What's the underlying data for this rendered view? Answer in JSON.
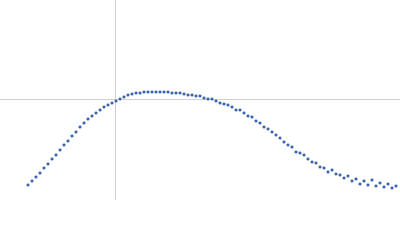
{
  "chart_data": {
    "type": "scatter",
    "color": "#3a64b0",
    "xlim": [
      0,
      400
    ],
    "ylim": [
      0,
      200
    ],
    "x": [
      28,
      32,
      36,
      40,
      44,
      48,
      52,
      56,
      60,
      64,
      68,
      72,
      76,
      80,
      84,
      88,
      92,
      96,
      100,
      104,
      108,
      112,
      116,
      120,
      124,
      128,
      132,
      136,
      140,
      144,
      148,
      152,
      156,
      160,
      164,
      168,
      172,
      176,
      180,
      184,
      188,
      192,
      196,
      200,
      204,
      208,
      212,
      216,
      220,
      224,
      228,
      232,
      236,
      240,
      244,
      248,
      252,
      256,
      260,
      264,
      268,
      272,
      276,
      280,
      284,
      288,
      292,
      296,
      300,
      304,
      308,
      312,
      316,
      320,
      324,
      328,
      332,
      336,
      340,
      344,
      348,
      352,
      356,
      360,
      364,
      368,
      372,
      376,
      380,
      384,
      388,
      392,
      396
    ],
    "values": [
      15,
      19,
      23,
      27,
      32,
      36,
      41,
      45,
      50,
      55,
      59,
      64,
      68,
      73,
      77,
      81,
      84,
      87,
      90,
      93,
      95,
      97,
      99,
      101,
      103,
      105,
      106,
      107,
      107,
      108,
      108,
      108,
      108,
      108,
      108,
      108,
      107,
      107,
      107,
      106,
      105,
      105,
      104,
      104,
      102,
      101,
      101,
      99,
      97,
      96,
      95,
      93,
      90,
      90,
      87,
      84,
      83,
      79,
      77,
      73,
      71,
      68,
      65,
      62,
      58,
      55,
      53,
      48,
      47,
      45,
      41,
      38,
      37,
      33,
      32,
      28,
      30,
      26,
      25,
      22,
      24,
      19,
      21,
      16,
      19,
      15,
      20,
      14,
      17,
      13,
      16,
      12,
      14
    ]
  }
}
